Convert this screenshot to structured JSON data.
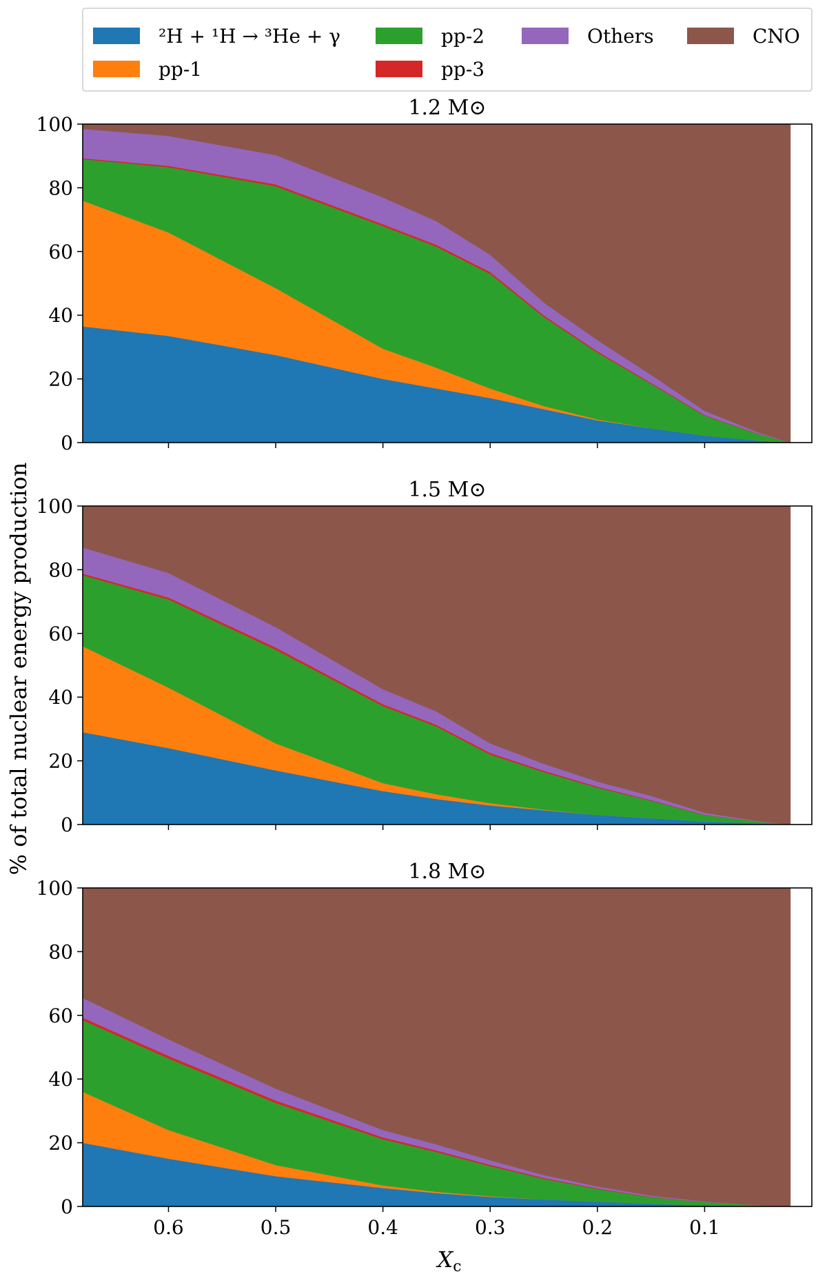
{
  "legend": {
    "entries": [
      {
        "label": "²H + ¹H → ³He + γ",
        "color": "#1f77b4"
      },
      {
        "label": "pp-2",
        "color": "#2ca02c"
      },
      {
        "label": "Others",
        "color": "#9467bd"
      },
      {
        "label": "CNO",
        "color": "#8c564b"
      },
      {
        "label": "pp-1",
        "color": "#ff7f0e"
      },
      {
        "label": "pp-3",
        "color": "#d62728"
      }
    ]
  },
  "axes": {
    "ylabel": "% of total nuclear energy production",
    "xlabel_main": "X",
    "xlabel_sub": "c"
  },
  "chart_data": [
    {
      "type": "area",
      "stacked": true,
      "title": "1.2 M⊙",
      "x_reversed": true,
      "xlim": [
        0.68,
        0.0
      ],
      "ylim": [
        0,
        100
      ],
      "x_ticks": [
        "0.6",
        "0.5",
        "0.4",
        "0.3",
        "0.2",
        "0.1"
      ],
      "y_ticks": [
        "0",
        "20",
        "40",
        "60",
        "80",
        "100"
      ],
      "x": [
        0.68,
        0.6,
        0.5,
        0.4,
        0.35,
        0.3,
        0.25,
        0.2,
        0.15,
        0.1,
        0.05,
        0.02
      ],
      "series": [
        {
          "name": "²H + ¹H → ³He + γ",
          "color": "#1f77b4",
          "values": [
            36.5,
            33.5,
            27.5,
            20.0,
            17.0,
            14.0,
            10.5,
            7.0,
            4.5,
            2.2,
            0.7,
            0.0
          ]
        },
        {
          "name": "pp-1",
          "color": "#ff7f0e",
          "values": [
            39.5,
            32.5,
            21.0,
            9.5,
            6.5,
            3.0,
            1.0,
            0.3,
            0.0,
            0.0,
            0.0,
            0.0
          ]
        },
        {
          "name": "pp-2",
          "color": "#2ca02c",
          "values": [
            13.0,
            20.5,
            32.0,
            38.5,
            38.0,
            36.0,
            28.0,
            21.0,
            14.0,
            6.3,
            2.0,
            0.0
          ]
        },
        {
          "name": "pp-3",
          "color": "#d62728",
          "values": [
            0.3,
            0.4,
            0.6,
            0.6,
            0.6,
            0.6,
            0.5,
            0.4,
            0.3,
            0.2,
            0.1,
            0.0
          ]
        },
        {
          "name": "Others",
          "color": "#9467bd",
          "values": [
            9.2,
            9.4,
            9.2,
            8.4,
            7.4,
            5.4,
            4.0,
            3.5,
            2.5,
            1.3,
            0.4,
            0.0
          ]
        },
        {
          "name": "CNO",
          "color": "#8c564b",
          "values": [
            1.5,
            3.7,
            9.7,
            23.0,
            30.5,
            41.0,
            56.0,
            67.8,
            78.7,
            90.0,
            96.8,
            100.0
          ]
        }
      ]
    },
    {
      "type": "area",
      "stacked": true,
      "title": "1.5 M⊙",
      "x_reversed": true,
      "xlim": [
        0.68,
        0.0
      ],
      "ylim": [
        0,
        100
      ],
      "x_ticks": [
        "0.6",
        "0.5",
        "0.4",
        "0.3",
        "0.2",
        "0.1"
      ],
      "y_ticks": [
        "0",
        "20",
        "40",
        "60",
        "80",
        "100"
      ],
      "x": [
        0.68,
        0.6,
        0.5,
        0.4,
        0.35,
        0.3,
        0.25,
        0.2,
        0.15,
        0.1,
        0.05,
        0.02
      ],
      "series": [
        {
          "name": "²H + ¹H → ³He + γ",
          "color": "#1f77b4",
          "values": [
            29.0,
            24.0,
            17.0,
            10.5,
            8.0,
            6.0,
            4.5,
            3.0,
            2.0,
            1.0,
            0.4,
            0.0
          ]
        },
        {
          "name": "pp-1",
          "color": "#ff7f0e",
          "values": [
            27.0,
            19.0,
            8.5,
            2.5,
            1.5,
            0.7,
            0.2,
            0.0,
            0.0,
            0.0,
            0.0,
            0.0
          ]
        },
        {
          "name": "pp-2",
          "color": "#2ca02c",
          "values": [
            22.3,
            27.7,
            29.4,
            24.2,
            21.3,
            15.3,
            11.8,
            8.6,
            5.5,
            2.0,
            0.5,
            0.0
          ]
        },
        {
          "name": "pp-3",
          "color": "#d62728",
          "values": [
            0.5,
            0.6,
            0.7,
            0.6,
            0.5,
            0.5,
            0.4,
            0.3,
            0.2,
            0.1,
            0.0,
            0.0
          ]
        },
        {
          "name": "Others",
          "color": "#9467bd",
          "values": [
            8.2,
            7.7,
            6.4,
            4.7,
            4.2,
            3.0,
            2.2,
            1.6,
            1.3,
            0.6,
            0.2,
            0.0
          ]
        },
        {
          "name": "CNO",
          "color": "#8c564b",
          "values": [
            13.0,
            21.0,
            38.0,
            57.5,
            64.5,
            74.5,
            80.9,
            86.5,
            91.0,
            96.3,
            98.9,
            100.0
          ]
        }
      ]
    },
    {
      "type": "area",
      "stacked": true,
      "title": "1.8 M⊙",
      "x_reversed": true,
      "xlim": [
        0.68,
        0.0
      ],
      "ylim": [
        0,
        100
      ],
      "x_ticks": [
        "0.6",
        "0.5",
        "0.4",
        "0.3",
        "0.2",
        "0.1"
      ],
      "y_ticks": [
        "0",
        "20",
        "40",
        "60",
        "80",
        "100"
      ],
      "x": [
        0.68,
        0.6,
        0.5,
        0.4,
        0.35,
        0.3,
        0.25,
        0.2,
        0.15,
        0.1,
        0.05,
        0.02
      ],
      "series": [
        {
          "name": "²H + ¹H → ³He + γ",
          "color": "#1f77b4",
          "values": [
            20.0,
            15.0,
            9.5,
            5.8,
            4.2,
            3.0,
            2.2,
            1.5,
            0.9,
            0.4,
            0.1,
            0.0
          ]
        },
        {
          "name": "pp-1",
          "color": "#ff7f0e",
          "values": [
            16.0,
            9.0,
            3.5,
            0.8,
            0.4,
            0.2,
            0.0,
            0.0,
            0.0,
            0.0,
            0.0,
            0.0
          ]
        },
        {
          "name": "pp-2",
          "color": "#2ca02c",
          "values": [
            22.5,
            22.5,
            19.5,
            14.5,
            12.5,
            9.5,
            6.5,
            4.0,
            2.0,
            1.0,
            0.3,
            0.0
          ]
        },
        {
          "name": "pp-3",
          "color": "#d62728",
          "values": [
            0.8,
            0.8,
            0.8,
            0.6,
            0.5,
            0.4,
            0.3,
            0.2,
            0.1,
            0.0,
            0.0,
            0.0
          ]
        },
        {
          "name": "Others",
          "color": "#9467bd",
          "values": [
            6.2,
            5.2,
            3.7,
            2.3,
            1.9,
            1.4,
            0.9,
            0.6,
            0.4,
            0.2,
            0.0,
            0.0
          ]
        },
        {
          "name": "CNO",
          "color": "#8c564b",
          "values": [
            34.5,
            47.5,
            63.0,
            76.0,
            80.5,
            85.5,
            90.1,
            93.7,
            96.6,
            98.4,
            99.6,
            100.0
          ]
        }
      ]
    }
  ]
}
